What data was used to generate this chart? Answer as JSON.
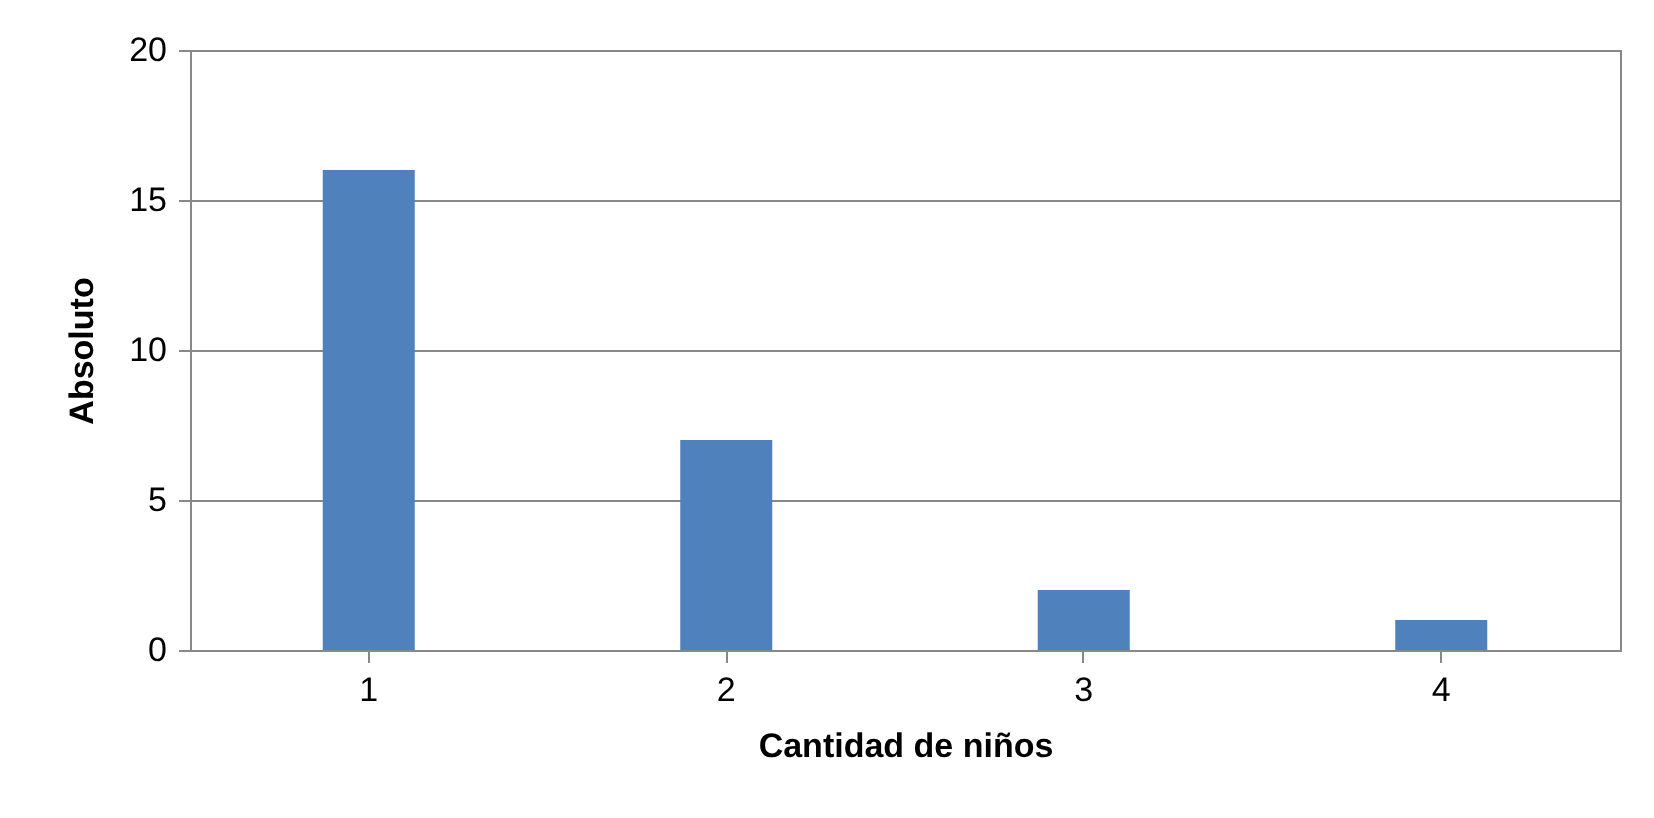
{
  "chart_data": {
    "type": "bar",
    "xlabel": "Cantidad de niños",
    "ylabel": "Absoluto",
    "categories": [
      "1",
      "2",
      "3",
      "4"
    ],
    "values": [
      16,
      7,
      2,
      1
    ],
    "color": "#4f81bd",
    "ylim": [
      0,
      20
    ],
    "yticks": [
      0,
      5,
      10,
      15,
      20
    ],
    "grid": "y"
  }
}
